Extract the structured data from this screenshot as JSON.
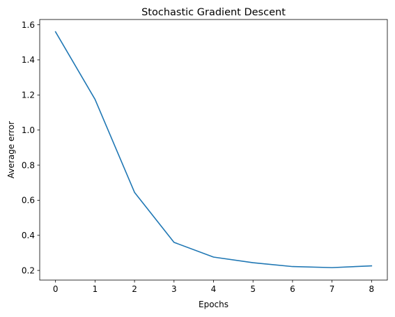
{
  "chart_data": {
    "type": "line",
    "title": "Stochastic Gradient Descent",
    "xlabel": "Epochs",
    "ylabel": "Average error",
    "xlim": [
      -0.4,
      8.4
    ],
    "ylim": [
      0.145,
      1.63
    ],
    "xticks": [
      0,
      1,
      2,
      3,
      4,
      5,
      6,
      7,
      8
    ],
    "xtick_labels": [
      "0",
      "1",
      "2",
      "3",
      "4",
      "5",
      "6",
      "7",
      "8"
    ],
    "yticks": [
      0.2,
      0.4,
      0.6,
      0.8,
      1.0,
      1.2,
      1.4,
      1.6
    ],
    "ytick_labels": [
      "0.2",
      "0.4",
      "0.6",
      "0.8",
      "1.0",
      "1.2",
      "1.4",
      "1.6"
    ],
    "grid": false,
    "series": [
      {
        "color": "#1f77b4",
        "x": [
          0,
          1,
          2,
          3,
          4,
          5,
          6,
          7,
          8
        ],
        "y": [
          1.56,
          1.175,
          0.645,
          0.36,
          0.276,
          0.244,
          0.222,
          0.216,
          0.226
        ]
      }
    ]
  }
}
